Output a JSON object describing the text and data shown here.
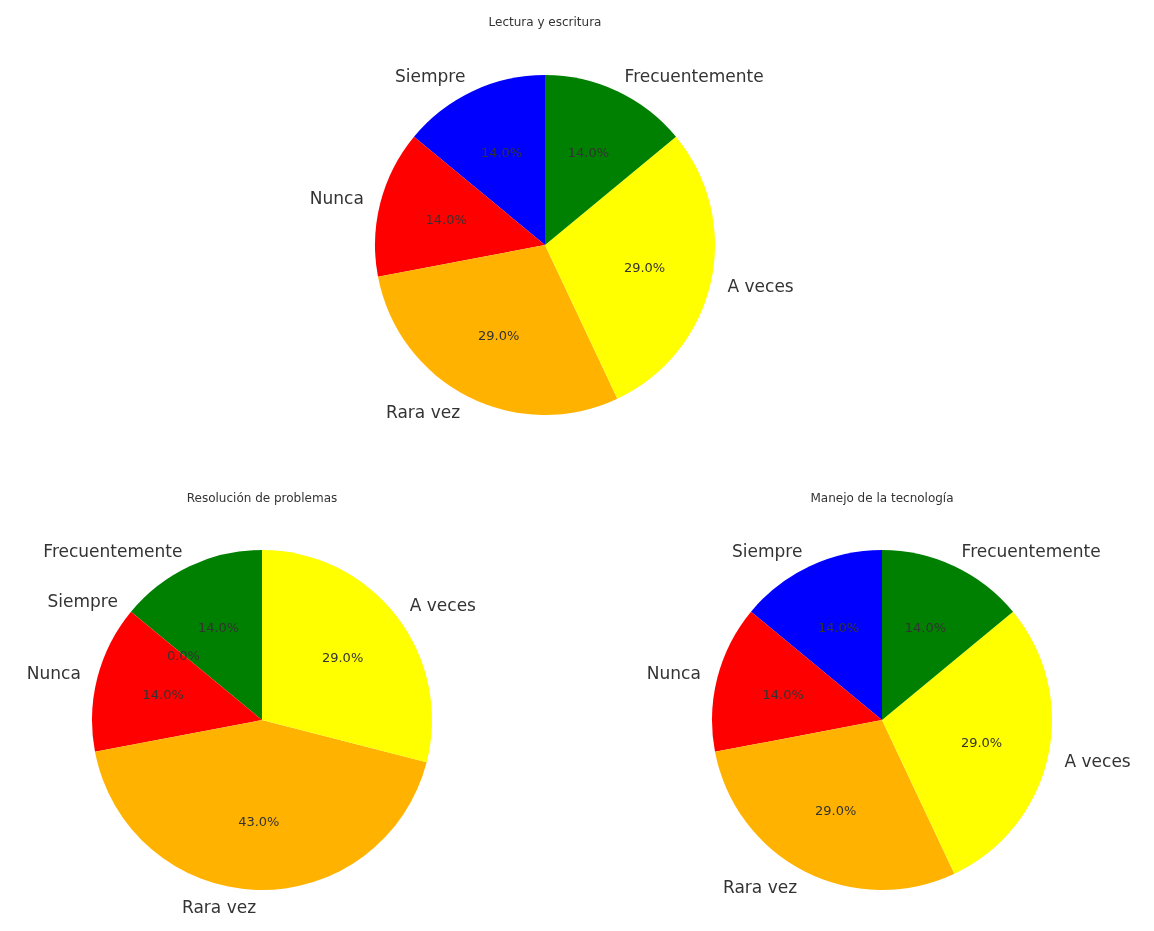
{
  "chart_data": [
    {
      "type": "pie",
      "title": "Lectura y escritura",
      "categories": [
        "Siempre",
        "Nunca",
        "Rara vez",
        "A veces",
        "Frecuentemente"
      ],
      "values": [
        14,
        14,
        29,
        29,
        14
      ],
      "colors": [
        "#0000ff",
        "#ff0000",
        "#ffb300",
        "#ffff00",
        "#008000"
      ],
      "value_labels": [
        "14.0%",
        "14.0%",
        "29.0%",
        "29.0%",
        "14.0%"
      ]
    },
    {
      "type": "pie",
      "title": "Resolución de problemas",
      "categories": [
        "Frecuentemente",
        "Siempre",
        "Nunca",
        "Rara vez",
        "A veces"
      ],
      "values": [
        14,
        0,
        14,
        43,
        29
      ],
      "colors": [
        "#008000",
        "#0000ff",
        "#ff0000",
        "#ffb300",
        "#ffff00"
      ],
      "value_labels": [
        "14.0%",
        "0.0%",
        "14.0%",
        "43.0%",
        "29.0%"
      ]
    },
    {
      "type": "pie",
      "title": "Manejo de la tecnología",
      "categories": [
        "Siempre",
        "Nunca",
        "Rara vez",
        "A veces",
        "Frecuentemente"
      ],
      "values": [
        14,
        14,
        29,
        29,
        14
      ],
      "colors": [
        "#0000ff",
        "#ff0000",
        "#ffb300",
        "#ffff00",
        "#008000"
      ],
      "value_labels": [
        "14.0%",
        "14.0%",
        "29.0%",
        "29.0%",
        "14.0%"
      ]
    }
  ]
}
